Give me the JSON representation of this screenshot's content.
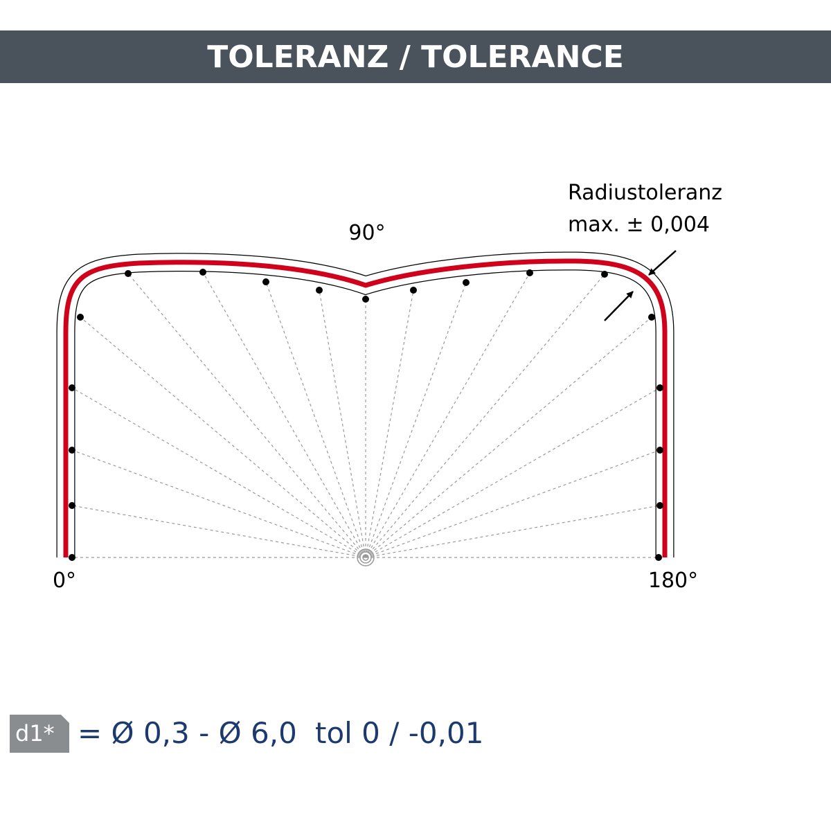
{
  "header": {
    "title": "TOLERANZ / TOLERANCE"
  },
  "diagram": {
    "angle_labels": [
      "0°",
      "90°",
      "180°"
    ],
    "annotation": [
      "Radiustoleranz",
      "max. ± 0,004"
    ]
  },
  "footer": {
    "badge": "d1*",
    "range": "= Ø 0,3 - Ø 6,0",
    "tolerance": "tol 0 / -0,01"
  }
}
